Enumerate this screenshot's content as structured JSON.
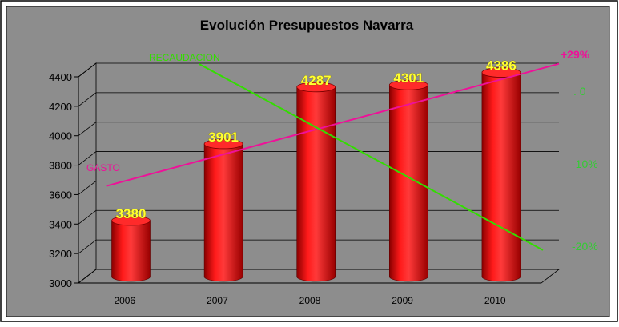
{
  "chart_data": {
    "type": "bar",
    "title": "Evolución Presupuestos Navarra",
    "categories": [
      "2006",
      "2007",
      "2008",
      "2009",
      "2010"
    ],
    "values": [
      3380,
      3901,
      4287,
      4301,
      4386
    ],
    "data_labels": [
      "3380",
      "3901",
      "4287",
      "4301",
      "4386"
    ],
    "ylim": [
      3000,
      4400
    ],
    "y_ticks": [
      "3000",
      "3200",
      "3400",
      "3600",
      "3800",
      "4000",
      "4200",
      "4400"
    ],
    "grid": true,
    "bar_color": "#ee0000",
    "overlay_lines": [
      {
        "name": "GASTO",
        "color": "#ee1199",
        "end_label": "+29%",
        "start_value": 3615,
        "end_value": 4445
      },
      {
        "name": "RECAUDACION",
        "color": "#33dd00",
        "start_value": 4445,
        "end_value": 3180
      }
    ],
    "secondary_axis": {
      "labels": [
        ". 0",
        "-10%",
        "-20%"
      ],
      "color": "#33cc33"
    }
  }
}
